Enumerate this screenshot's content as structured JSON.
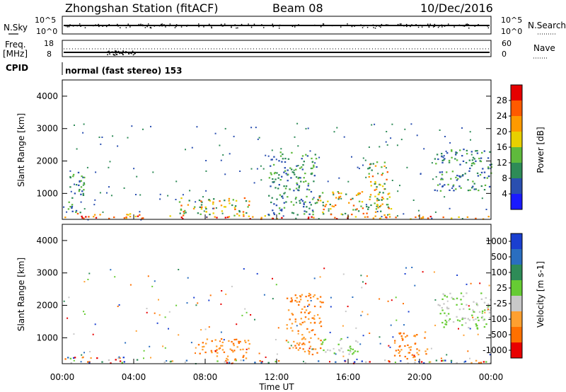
{
  "header": {
    "station": "Zhongshan Station (fitACF)",
    "beam": "Beam 08",
    "date": "10/Dec/2016"
  },
  "top_panels": {
    "nsky_label": "N.Sky",
    "nsky_ticks": [
      "10^5",
      "10^0"
    ],
    "nsearch_label": "N.Search",
    "nsearch_ticks": [
      "10^5",
      "10^0"
    ],
    "freq_label_1": "Freq.",
    "freq_label_2": "[MHz]",
    "freq_ticks": [
      "18",
      "8"
    ],
    "nave_label": "Nave",
    "nave_ticks": [
      "60",
      "0"
    ],
    "cpid_label": "CPID",
    "cpid_text": "normal (fast stereo) 153"
  },
  "chart_data": [
    {
      "type": "heatmap",
      "name": "power",
      "ylabel": "Slant Range [km]",
      "yticks": [
        "1000",
        "2000",
        "3000",
        "4000"
      ],
      "ylim": [
        200,
        4500
      ],
      "xlim": [
        "00:00",
        "24:00"
      ],
      "colorbar_label": "Power [dB]",
      "colorbar_ticks": [
        "4",
        "8",
        "12",
        "16",
        "20",
        "24",
        "28"
      ],
      "colors": [
        "#1a1aff",
        "#2a4fb0",
        "#2e8b57",
        "#5fba3c",
        "#e8d000",
        "#ff9a00",
        "#ff5a00",
        "#e60000"
      ],
      "features": [
        {
          "t0": 0.1,
          "t1": 4.3,
          "r0": 230,
          "r1": 420,
          "level": "high"
        },
        {
          "t0": 4.3,
          "t1": 24.0,
          "r0": 230,
          "r1": 330,
          "level": "high"
        },
        {
          "t0": 0.3,
          "t1": 1.2,
          "r0": 400,
          "r1": 1800,
          "level": "low"
        },
        {
          "t0": 6.5,
          "t1": 10.5,
          "r0": 330,
          "r1": 900,
          "level": "mid"
        },
        {
          "t0": 11.5,
          "t1": 14.2,
          "r0": 350,
          "r1": 2300,
          "level": "low"
        },
        {
          "t0": 14.2,
          "t1": 18.5,
          "r0": 350,
          "r1": 1100,
          "level": "mid"
        },
        {
          "t0": 17.0,
          "t1": 18.2,
          "r0": 800,
          "r1": 2000,
          "level": "mid"
        },
        {
          "t0": 20.8,
          "t1": 24.0,
          "r0": 1100,
          "r1": 2400,
          "level": "low"
        }
      ]
    },
    {
      "type": "heatmap",
      "name": "velocity",
      "ylabel": "Slant Range [km]",
      "yticks": [
        "1000",
        "2000",
        "3000",
        "4000"
      ],
      "ylim": [
        200,
        4500
      ],
      "xlim": [
        "00:00",
        "24:00"
      ],
      "xticks": [
        "00:00",
        "04:00",
        "08:00",
        "12:00",
        "16:00",
        "20:00",
        "00:00"
      ],
      "xlabel": "Time UT",
      "colorbar_label": "Velocity [m s-1]",
      "colorbar_ticks": [
        "1000",
        "500",
        "100",
        "25",
        "-25",
        "-100",
        "-500",
        "-1000"
      ],
      "colors": [
        "#1a3fd0",
        "#2a6ec0",
        "#2e8b57",
        "#66cc33",
        "#c8c8c8",
        "#ffa030",
        "#ff7000",
        "#e80000"
      ],
      "features": [
        {
          "t0": 0.1,
          "t1": 4.3,
          "r0": 230,
          "r1": 420,
          "level": "mixed"
        },
        {
          "t0": 4.3,
          "t1": 24.0,
          "r0": 230,
          "r1": 330,
          "level": "mixed"
        },
        {
          "t0": 7.5,
          "t1": 10.5,
          "r0": 330,
          "r1": 1000,
          "level": "neg"
        },
        {
          "t0": 12.5,
          "t1": 14.5,
          "r0": 500,
          "r1": 2400,
          "level": "neg"
        },
        {
          "t0": 14.5,
          "t1": 16.5,
          "r0": 500,
          "r1": 1000,
          "level": "zero"
        },
        {
          "t0": 18.5,
          "t1": 20.5,
          "r0": 330,
          "r1": 1200,
          "level": "neg"
        },
        {
          "t0": 21.0,
          "t1": 24.0,
          "r0": 1300,
          "r1": 2400,
          "level": "zero"
        }
      ]
    }
  ]
}
